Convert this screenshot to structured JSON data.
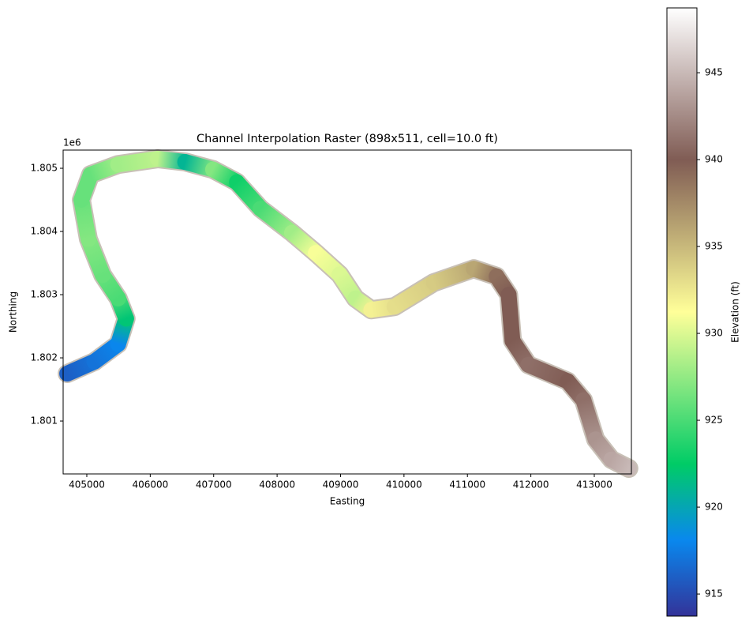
{
  "chart_data": {
    "type": "raster",
    "title": "Channel Interpolation Raster (898x511, cell=10.0 ft)",
    "xlabel": "Easting",
    "ylabel": "Northing",
    "y_offset_label": "1e6",
    "xlim": [
      404627,
      413585
    ],
    "ylim": [
      1.800163,
      1.805288
    ],
    "xticks": [
      405000,
      406000,
      407000,
      408000,
      409000,
      410000,
      411000,
      412000,
      413000
    ],
    "yticks": [
      1.801,
      1.802,
      1.803,
      1.804,
      1.805
    ],
    "x": [
      404690,
      405120,
      405495,
      405620,
      405495,
      405250,
      405025,
      404915,
      405060,
      405495,
      406120,
      406550,
      406990,
      407365,
      407740,
      408235,
      408610,
      408985,
      409235,
      409485,
      409850,
      410470,
      411100,
      411460,
      411650,
      411710,
      411960,
      412580,
      412830,
      413020,
      413270,
      413545
    ],
    "y": [
      1.80175,
      1.80194,
      1.80222,
      1.80262,
      1.80294,
      1.80331,
      1.80388,
      1.8045,
      1.8049,
      1.80506,
      1.80515,
      1.8051,
      1.80498,
      1.80478,
      1.80436,
      1.80398,
      1.80366,
      1.80332,
      1.80294,
      1.80276,
      1.80281,
      1.80319,
      1.80341,
      1.80329,
      1.803,
      1.80227,
      1.80189,
      1.80163,
      1.80133,
      1.80071,
      1.80039,
      1.80025
    ],
    "values": [
      916,
      917,
      918,
      922,
      925,
      926,
      927,
      926,
      926,
      928,
      929,
      921,
      927,
      923,
      925,
      928,
      931,
      930,
      929,
      932,
      933,
      934,
      936,
      939,
      940,
      940,
      941,
      940,
      941,
      943,
      944,
      945
    ],
    "colormap": [
      "#333399",
      "#0988ee",
      "#00cc66",
      "#80e680",
      "#ffff99",
      "#bfad76",
      "#805c54",
      "#bfadaa",
      "#ffffff"
    ],
    "colorbar": {
      "label": "Elevation (ft)",
      "lim": [
        913.73,
        948.73
      ],
      "ticks": [
        915,
        920,
        925,
        930,
        935,
        940,
        945
      ]
    }
  }
}
